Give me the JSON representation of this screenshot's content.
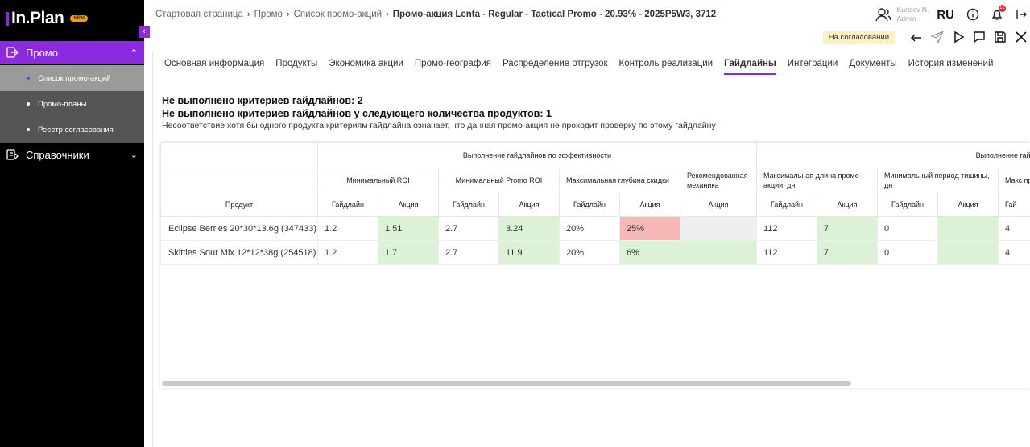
{
  "sidebar": {
    "logo": "In.Plan",
    "logo_badge": "NRM",
    "promo_label": "Промо",
    "sub_items": [
      {
        "label": "Список промо-акций"
      },
      {
        "label": "Промо-планы"
      },
      {
        "label": "Реестр согласования"
      }
    ],
    "reference_label": "Справочники"
  },
  "breadcrumb": {
    "items": [
      "Стартовая страница",
      "Промо",
      "Список промо-акций"
    ],
    "current": "Промо-акция Lenta - Regular - Tactical Promo - 20.93% - 2025P5W3, 3712"
  },
  "user": {
    "name": "Kurtsev N.",
    "role": "Admin"
  },
  "lang": "RU",
  "notifications_count": "12",
  "status": "На согласовании",
  "tabs": [
    {
      "label": "Основная информация"
    },
    {
      "label": "Продукты"
    },
    {
      "label": "Экономика акции"
    },
    {
      "label": "Промо-география"
    },
    {
      "label": "Распределение отгрузок"
    },
    {
      "label": "Контроль реализации"
    },
    {
      "label": "Гайдлайны"
    },
    {
      "label": "Интеграции"
    },
    {
      "label": "Документы"
    },
    {
      "label": "История изменений"
    }
  ],
  "summary": {
    "line1": "Не выполнено критериев гайдлайнов: 2",
    "line2": "Не выполнено критериев гайдлайнов у следующего количества продуктов: 1",
    "note": "Несоответствие хотя бы одного продукта критериям гайдлайна означает, что данная промо-акция не проходит проверку по этому гайдлайну"
  },
  "table": {
    "group1": "Выполнение гайдлайнов по эффективности",
    "group2": "Выполнение гайдлайнов по д",
    "criteria": [
      "Минимальный ROI",
      "Минимальный Promo ROI",
      "Максимальная глубина скидки",
      "Рекомендованная механика",
      "Максимальная длина промо акции, дн",
      "Минимальный период тишины, дн",
      "Макс прома"
    ],
    "product_header": "Продукт",
    "guideline": "Гайдлайн",
    "action": "Акция",
    "guideline_cut": "Гай",
    "rows": [
      {
        "product": "Eclipse Berries 20*30*13.6g (347433)",
        "c": [
          "1.2",
          "1.51",
          "2.7",
          "3.24",
          "20%",
          "25%",
          "",
          "112",
          "7",
          "0",
          "",
          "4"
        ]
      },
      {
        "product": "Skittles Sour Mix 12*12*38g (254518)",
        "c": [
          "1.2",
          "1.7",
          "2.7",
          "11.9",
          "20%",
          "6%",
          "",
          "112",
          "7",
          "0",
          "",
          "4"
        ]
      }
    ]
  },
  "colors": {
    "accent": "#8a2be2",
    "pass": "#dcf2d6",
    "fail": "#f7b7b7"
  }
}
